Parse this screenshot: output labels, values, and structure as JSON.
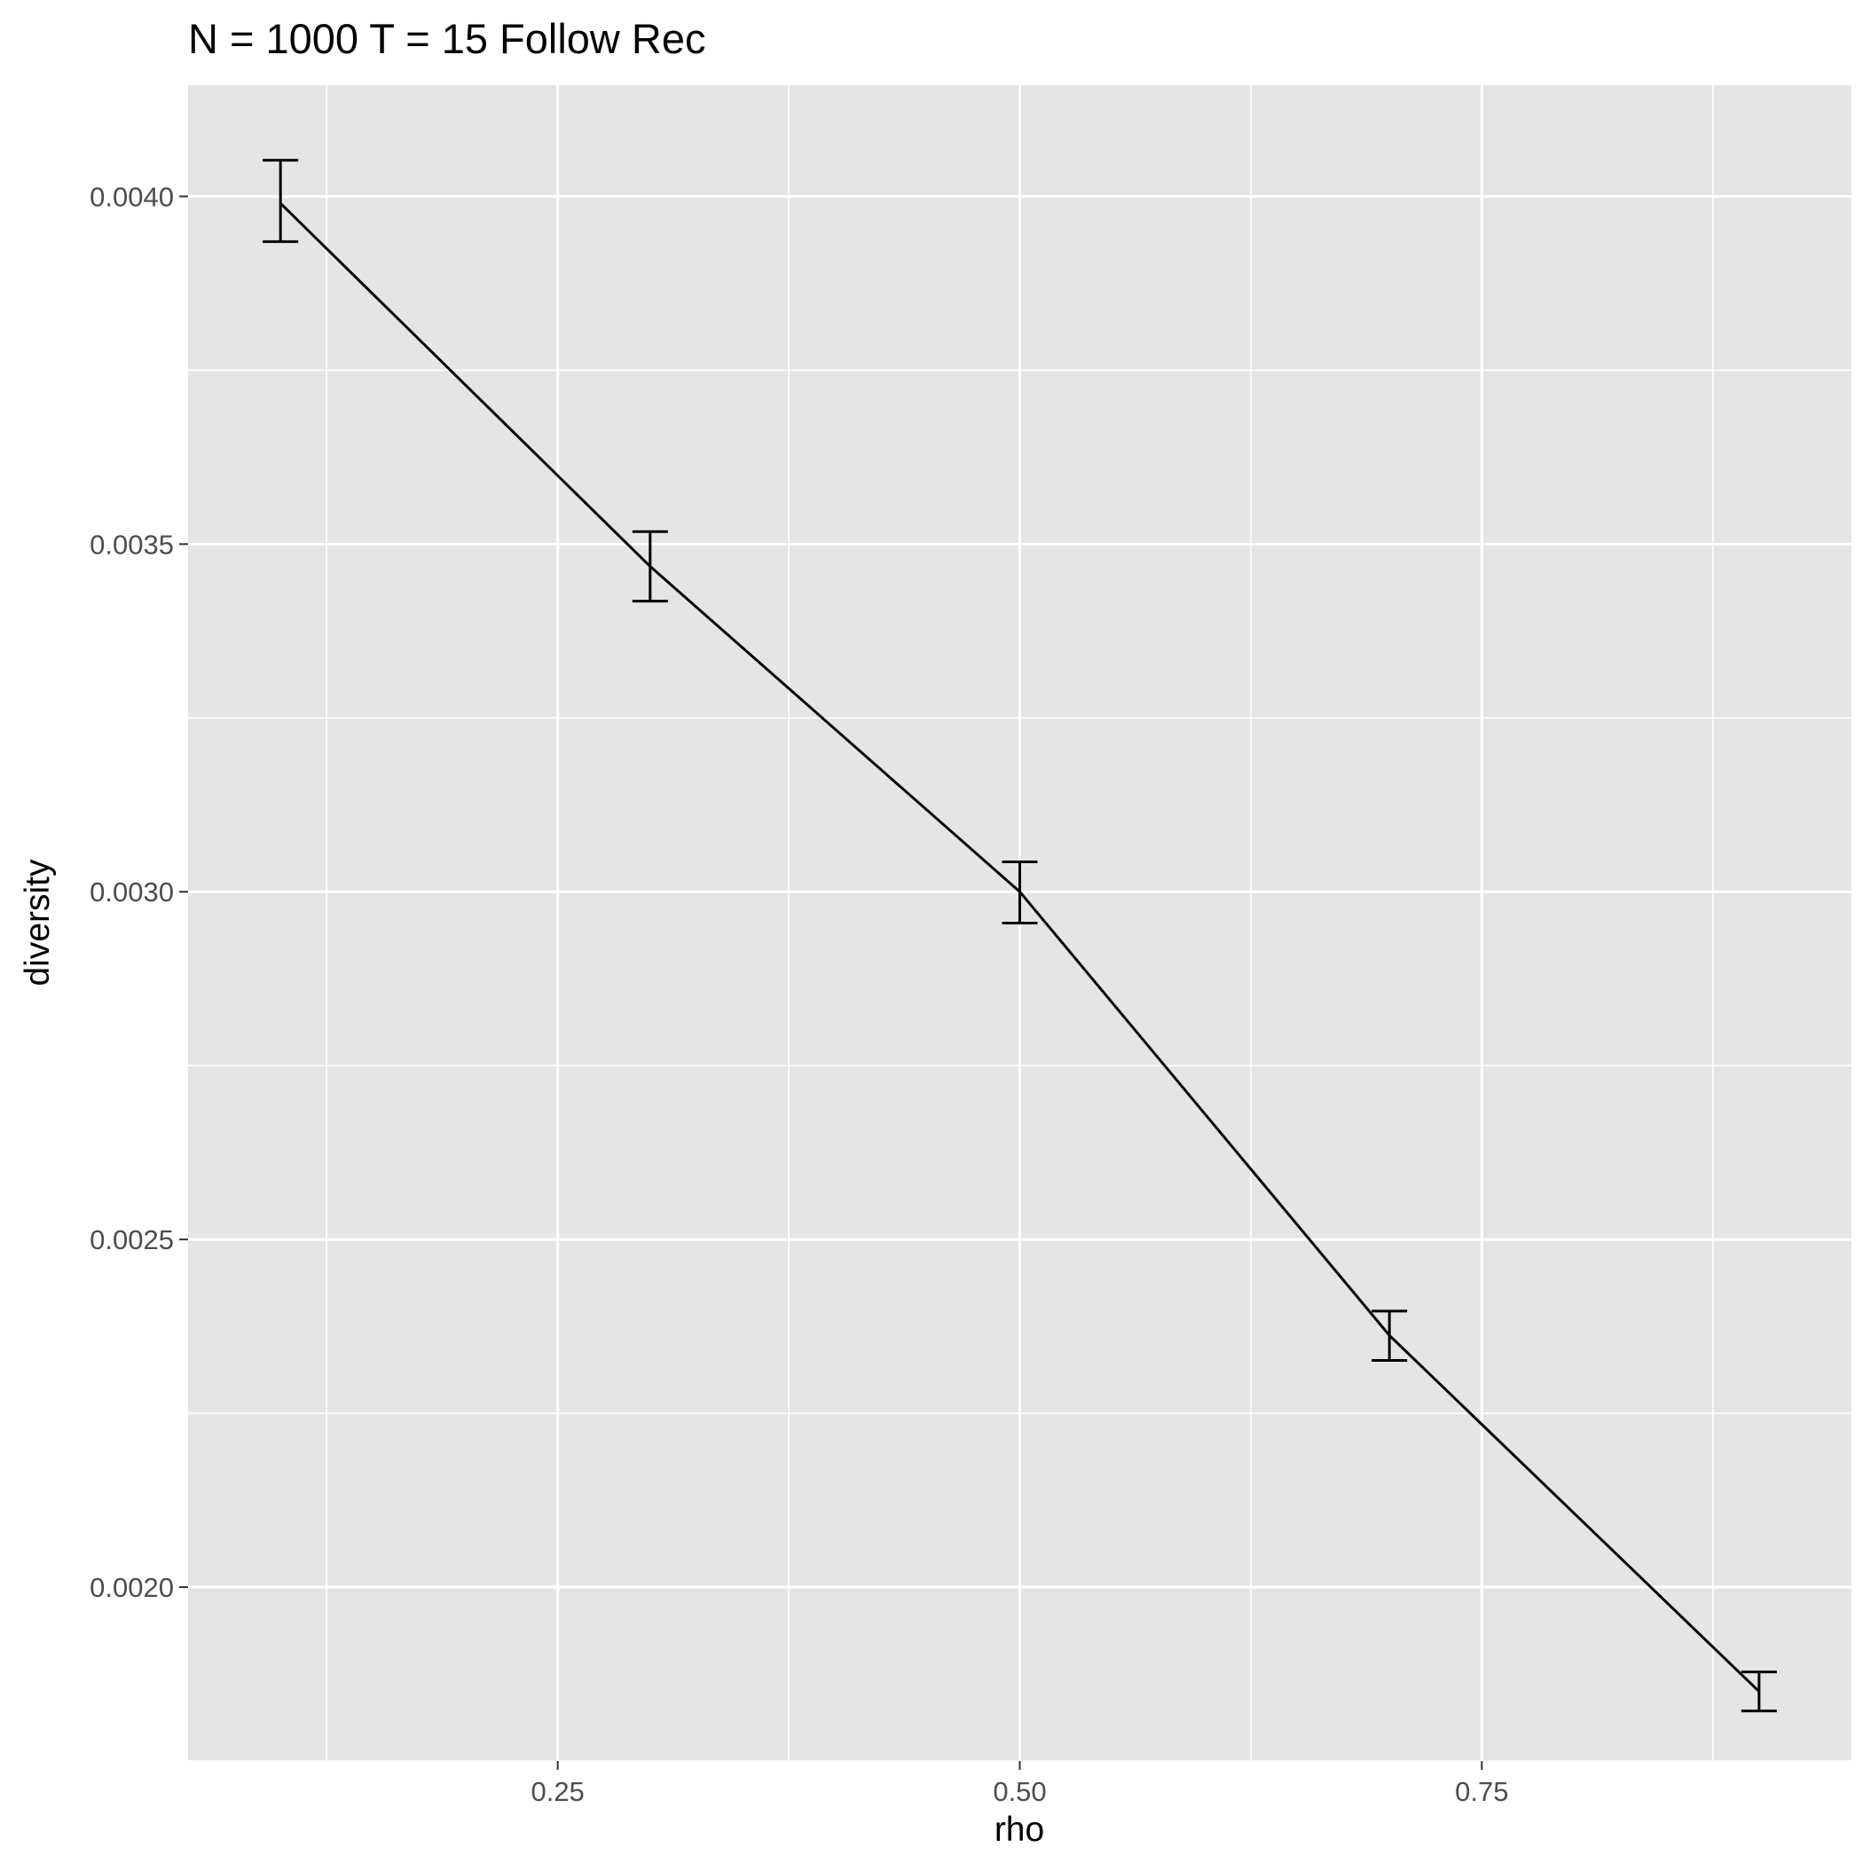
{
  "chart_data": {
    "type": "line",
    "title": "N = 1000 T = 15 Follow Rec",
    "xlabel": "rho",
    "ylabel": "diversity",
    "xlim": [
      0.05,
      0.95
    ],
    "ylim": [
      0.00175,
      0.00416
    ],
    "x_ticks": [
      0.25,
      0.5,
      0.75
    ],
    "x_tick_labels": [
      "0.25",
      "0.50",
      "0.75"
    ],
    "x_minor_ticks": [
      0.125,
      0.375,
      0.625,
      0.875
    ],
    "y_ticks": [
      0.002,
      0.0025,
      0.003,
      0.0035,
      0.004
    ],
    "y_tick_labels": [
      "0.0020",
      "0.0025",
      "0.0030",
      "0.0035",
      "0.0040"
    ],
    "y_minor_ticks": [
      0.00175,
      0.00225,
      0.00275,
      0.00325,
      0.00375
    ],
    "grid": true,
    "series": [
      {
        "x": [
          0.1,
          0.3,
          0.5,
          0.7,
          0.9
        ],
        "y": [
          0.00399,
          0.003468,
          0.003,
          0.002362,
          0.00185
        ],
        "ymin": [
          0.003935,
          0.003418,
          0.002955,
          0.002326,
          0.001822
        ],
        "ymax": [
          0.004052,
          0.003518,
          0.003043,
          0.002397,
          0.001878
        ]
      }
    ],
    "colors": {
      "panel": "#e5e5e5",
      "grid": "#ffffff",
      "line": "#000000",
      "tick_label": "#4d4d4d",
      "tick_mark": "#333333"
    }
  }
}
